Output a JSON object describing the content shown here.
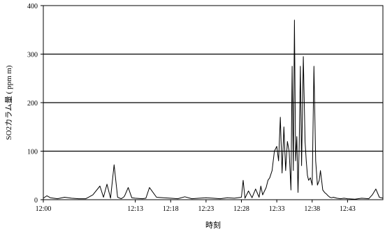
{
  "chart_data": {
    "type": "line",
    "title": "",
    "xlabel": "時刻",
    "ylabel": "SO2カラム量 ( ppm m)",
    "x_unit": "time (HH:MM)",
    "xlim": [
      "12:00",
      "12:48"
    ],
    "ylim": [
      0,
      400
    ],
    "y_ticks": [
      0,
      100,
      200,
      300,
      400
    ],
    "x_ticks": [
      "12:00",
      "12:13",
      "12:18",
      "12:23",
      "12:28",
      "12:33",
      "12:38",
      "12:43"
    ],
    "grid": {
      "horizontal": true,
      "vertical": false,
      "y_lines": [
        100,
        200,
        300
      ]
    },
    "legend": "none",
    "colors": {
      "line": "#000000",
      "grid": "#000000",
      "background": "#ffffff"
    },
    "series": [
      {
        "x": [
          "12:00",
          "12:00:30",
          "12:01",
          "12:02",
          "12:03",
          "12:04",
          "12:05",
          "12:06",
          "12:07",
          "12:08",
          "12:08:30",
          "12:09",
          "12:09:30",
          "12:10",
          "12:10:30",
          "12:11",
          "12:11:20",
          "12:11:30",
          "12:12",
          "12:12:30",
          "12:13",
          "12:14",
          "12:14:30",
          "12:15",
          "12:16",
          "12:17",
          "12:18",
          "12:19",
          "12:20",
          "12:21",
          "12:22",
          "12:23",
          "12:24",
          "12:25",
          "12:26",
          "12:27",
          "12:28",
          "12:28:15",
          "12:28:30",
          "12:29",
          "12:29:30",
          "12:30",
          "12:30:30",
          "12:30:45",
          "12:31",
          "12:31:30",
          "12:31:45",
          "12:32",
          "12:32:20",
          "12:32:40",
          "12:33",
          "12:33:15",
          "12:33:30",
          "12:33:45",
          "12:34",
          "12:34:15",
          "12:34:30",
          "12:34:45",
          "12:35",
          "12:35:10",
          "12:35:20",
          "12:35:30",
          "12:35:40",
          "12:35:50",
          "12:36",
          "12:36:10",
          "12:36:20",
          "12:36:30",
          "12:36:45",
          "12:37",
          "12:37:10",
          "12:37:20",
          "12:37:30",
          "12:37:45",
          "12:38",
          "12:38:15",
          "12:38:30",
          "12:38:45",
          "12:39",
          "12:39:10",
          "12:39:20",
          "12:39:30",
          "12:39:45",
          "12:40",
          "12:40:15",
          "12:40:30",
          "12:40:45",
          "12:41",
          "12:41:30",
          "12:42",
          "12:42:30",
          "12:43",
          "12:44",
          "12:45",
          "12:46",
          "12:46:30",
          "12:47",
          "12:47:30",
          "12:48"
        ],
        "values": [
          3,
          8,
          4,
          2,
          5,
          3,
          2,
          2,
          10,
          28,
          5,
          32,
          3,
          72,
          5,
          2,
          5,
          8,
          25,
          4,
          3,
          2,
          3,
          25,
          5,
          4,
          3,
          2,
          6,
          2,
          3,
          4,
          3,
          2,
          4,
          3,
          5,
          40,
          3,
          18,
          4,
          22,
          5,
          28,
          10,
          25,
          40,
          45,
          60,
          100,
          110,
          80,
          170,
          55,
          150,
          60,
          120,
          100,
          20,
          275,
          60,
          370,
          80,
          130,
          15,
          110,
          275,
          70,
          295,
          120,
          80,
          50,
          40,
          45,
          30,
          275,
          80,
          30,
          40,
          60,
          40,
          20,
          15,
          12,
          8,
          5,
          4,
          5,
          3,
          2,
          3,
          2,
          1,
          3,
          2,
          10,
          22,
          5,
          3
        ]
      }
    ]
  }
}
